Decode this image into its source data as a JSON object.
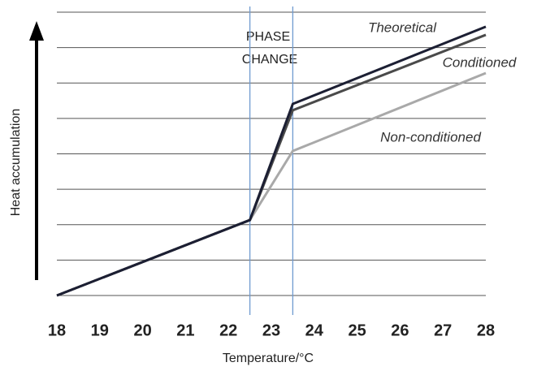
{
  "chart_data": {
    "type": "line",
    "x_label": "Temperature/°C",
    "y_label": "Heat accumulation",
    "annotation": [
      "PHASE",
      "CHANGE"
    ],
    "phase_change_bounds": [
      22.5,
      23.5
    ],
    "x": [
      18,
      22.5,
      23.5,
      28
    ],
    "series": [
      {
        "name": "Theoretical",
        "color": "#1c1f33",
        "values": [
          0,
          2.13,
          5.41,
          7.59
        ]
      },
      {
        "name": "Conditioned",
        "color": "#4a4a4a",
        "values": [
          0,
          2.13,
          5.23,
          7.36
        ]
      },
      {
        "name": "Non-conditioned",
        "color": "#a9a9a9",
        "values": [
          0,
          2.13,
          4.08,
          6.28
        ]
      }
    ],
    "xlim": [
      18,
      28
    ],
    "xticks": [
      18,
      19,
      20,
      21,
      22,
      23,
      24,
      25,
      26,
      27,
      28
    ],
    "ylim": [
      0,
      8
    ],
    "ygrid": [
      1,
      2,
      3,
      4,
      5,
      6,
      7,
      8
    ],
    "grid": true
  }
}
